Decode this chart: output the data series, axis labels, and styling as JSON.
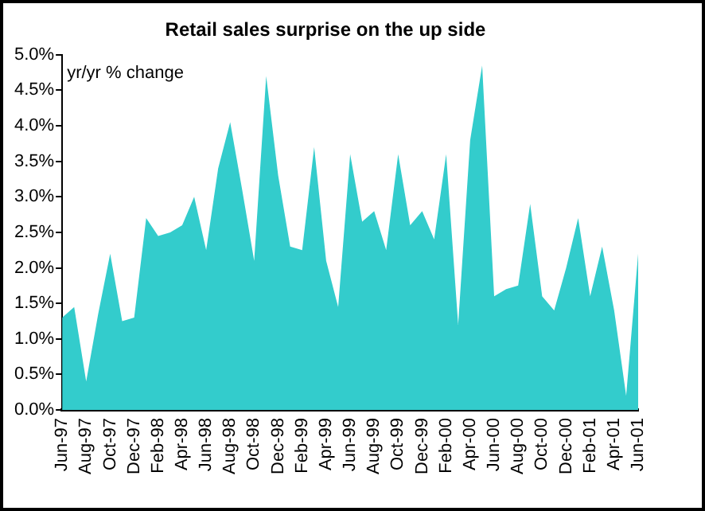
{
  "chart_data": {
    "type": "area",
    "title": "Retail sales surprise on the up side",
    "ylabel": "yr/yr % change",
    "categories": [
      "Jun-97",
      null,
      "Aug-97",
      null,
      "Oct-97",
      null,
      "Dec-97",
      null,
      "Feb-98",
      null,
      "Apr-98",
      null,
      "Jun-98",
      null,
      "Aug-98",
      null,
      "Oct-98",
      null,
      "Dec-98",
      null,
      "Feb-99",
      null,
      "Apr-99",
      null,
      "Jun-99",
      null,
      "Aug-99",
      null,
      "Oct-99",
      null,
      "Dec-99",
      null,
      "Feb-00",
      null,
      "Apr-00",
      null,
      "Jun-00",
      null,
      "Aug-00",
      null,
      "Oct-00",
      null,
      "Dec-00",
      null,
      "Feb-01",
      null,
      "Apr-01",
      null,
      "Jun-01"
    ],
    "series": [
      {
        "color": "#33cccc",
        "values": [
          1.3,
          1.45,
          0.4,
          1.35,
          2.2,
          1.25,
          1.3,
          2.7,
          2.45,
          2.5,
          2.6,
          3.0,
          2.25,
          3.4,
          4.05,
          3.1,
          2.1,
          4.7,
          3.3,
          2.3,
          2.25,
          3.7,
          2.1,
          1.45,
          3.6,
          2.65,
          2.8,
          2.25,
          3.6,
          2.6,
          2.8,
          2.4,
          3.6,
          1.2,
          3.8,
          4.85,
          1.6,
          1.7,
          1.75,
          2.9,
          1.6,
          1.4,
          2.0,
          2.7,
          1.6,
          2.3,
          1.4,
          0.2,
          2.2
        ]
      }
    ],
    "ylim": [
      0,
      5
    ],
    "yticks": [
      {
        "value": 0,
        "label": "0.0%"
      },
      {
        "value": 0.5,
        "label": "0.5%"
      },
      {
        "value": 1,
        "label": "1.0%"
      },
      {
        "value": 1.5,
        "label": "1.5%"
      },
      {
        "value": 2,
        "label": "2.0%"
      },
      {
        "value": 2.5,
        "label": "2.5%"
      },
      {
        "value": 3,
        "label": "3.0%"
      },
      {
        "value": 3.5,
        "label": "3.5%"
      },
      {
        "value": 4,
        "label": "4.0%"
      },
      {
        "value": 4.5,
        "label": "4.5%"
      },
      {
        "value": 5,
        "label": "5.0%"
      }
    ],
    "grid": false,
    "legend": false
  }
}
